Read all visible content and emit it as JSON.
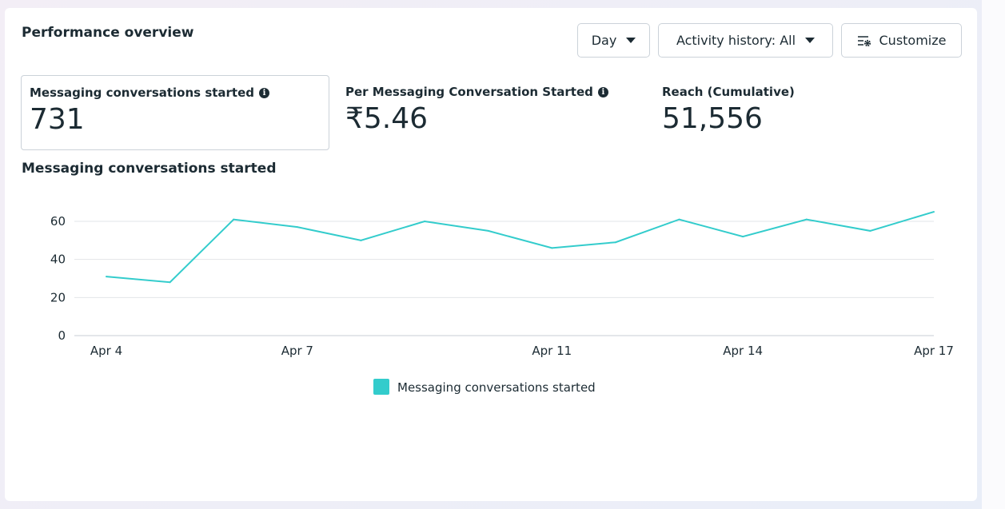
{
  "header": {
    "title": "Performance overview",
    "day_label": "Day",
    "activity_label": "Activity history: All",
    "customize_label": "Customize"
  },
  "kpis": [
    {
      "label": "Messaging conversations started",
      "value": "731",
      "info": true
    },
    {
      "label": "Per Messaging Conversation Started",
      "value": "₹5.46",
      "info": true
    },
    {
      "label": "Reach (Cumulative)",
      "value": "51,556",
      "info": false
    }
  ],
  "chart_data": {
    "type": "line",
    "title": "Messaging conversations started",
    "x": [
      "Apr 4",
      "Apr 5",
      "Apr 6",
      "Apr 7",
      "Apr 8",
      "Apr 9",
      "Apr 10",
      "Apr 11",
      "Apr 12",
      "Apr 13",
      "Apr 14",
      "Apr 15",
      "Apr 16",
      "Apr 17"
    ],
    "x_tick_labels": [
      "Apr 4",
      "Apr 7",
      "Apr 11",
      "Apr 14",
      "Apr 17"
    ],
    "y_ticks": [
      0,
      20,
      40,
      60
    ],
    "ylim": [
      0,
      65
    ],
    "grid": true,
    "color": "#33cccc",
    "legend_position": "bottom",
    "series": [
      {
        "name": "Messaging conversations started",
        "values": [
          31,
          28,
          61,
          57,
          50,
          60,
          55,
          46,
          49,
          61,
          52,
          61,
          55,
          65
        ]
      }
    ]
  }
}
